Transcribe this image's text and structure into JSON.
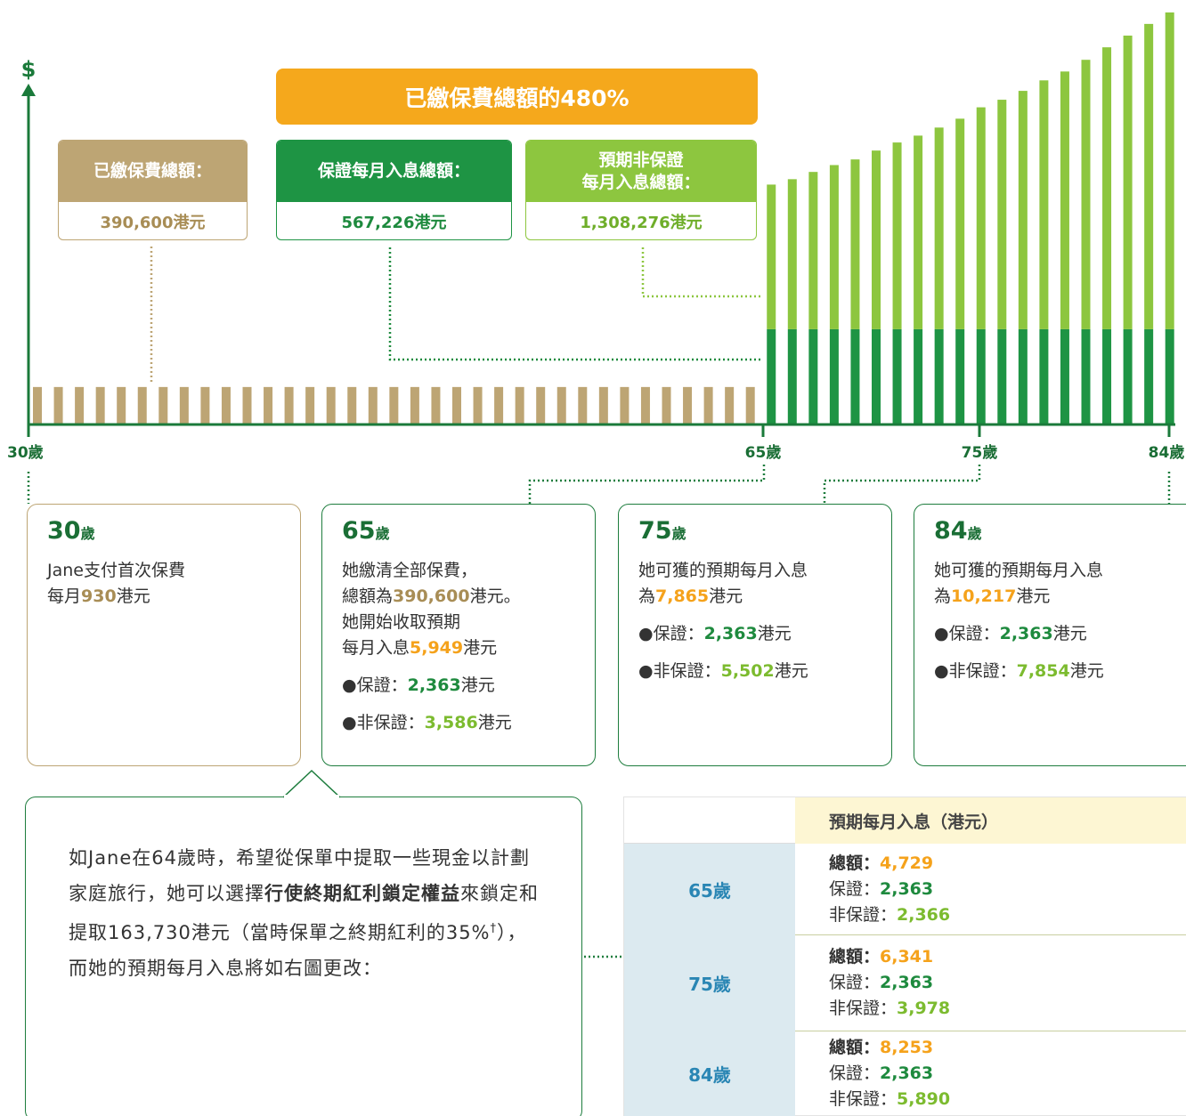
{
  "chart_data": {
    "type": "bar",
    "y_label": "$",
    "age_labels": [
      "30歲",
      "65歲",
      "75歲",
      "84歲"
    ],
    "premium": {
      "color": "#bda574",
      "values": [
        930,
        930,
        930,
        930,
        930,
        930,
        930,
        930,
        930,
        930,
        930,
        930,
        930,
        930,
        930,
        930,
        930,
        930,
        930,
        930,
        930,
        930,
        930,
        930,
        930,
        930,
        930,
        930,
        930,
        930,
        930,
        930,
        930,
        930,
        930
      ]
    },
    "guaranteed": {
      "color": "#1e9444",
      "values": [
        2363,
        2363,
        2363,
        2363,
        2363,
        2363,
        2363,
        2363,
        2363,
        2363,
        2363,
        2363,
        2363,
        2363,
        2363,
        2363,
        2363,
        2363,
        2363,
        2363
      ]
    },
    "non_guaranteed": {
      "color": "#8dc63f",
      "values": [
        3586,
        3720,
        3900,
        4070,
        4210,
        4430,
        4630,
        4800,
        5000,
        5220,
        5502,
        5690,
        5910,
        6170,
        6390,
        6680,
        6990,
        7280,
        7570,
        7854
      ]
    }
  },
  "banner": "已繳保費總額的480%",
  "totals": [
    {
      "label": [
        "已繳保費總額："
      ],
      "value": "390,600港元",
      "style": "tan"
    },
    {
      "label": [
        "保證每月入息總額："
      ],
      "value": "567,226港元",
      "style": "green"
    },
    {
      "label": [
        "預期非保證",
        "每月入息總額："
      ],
      "value": "1,308,276港元",
      "style": "lgreen"
    }
  ],
  "cards": [
    {
      "age": "30",
      "unit": "歲",
      "style": "tan",
      "lines": [
        [
          {
            "text": "Jane支付首次保費"
          }
        ],
        [
          {
            "text": "每月"
          },
          {
            "text": "930",
            "style": "tan"
          },
          {
            "text": "港元"
          }
        ]
      ]
    },
    {
      "age": "65",
      "unit": "歲",
      "style": "green",
      "lines": [
        [
          {
            "text": "她繳清全部保費，"
          }
        ],
        [
          {
            "text": "總額為"
          },
          {
            "text": "390,600",
            "style": "tan"
          },
          {
            "text": "港元。"
          }
        ],
        [
          {
            "text": "她開始收取預期"
          }
        ],
        [
          {
            "text": "每月入息"
          },
          {
            "text": "5,949",
            "style": "orange"
          },
          {
            "text": "港元"
          }
        ],
        [
          {
            "text": "●保證："
          },
          {
            "text": "2,363",
            "style": "green"
          },
          {
            "text": "港元"
          }
        ],
        [
          {
            "text": "●非保證："
          },
          {
            "text": "3,586",
            "style": "lgreen"
          },
          {
            "text": "港元"
          }
        ]
      ]
    },
    {
      "age": "75",
      "unit": "歲",
      "style": "green",
      "lines": [
        [
          {
            "text": "她可獲的預期每月入息"
          }
        ],
        [
          {
            "text": "為"
          },
          {
            "text": "7,865",
            "style": "orange"
          },
          {
            "text": "港元"
          }
        ],
        [
          {
            "text": "●保證："
          },
          {
            "text": "2,363",
            "style": "green"
          },
          {
            "text": "港元"
          }
        ],
        [
          {
            "text": "●非保證："
          },
          {
            "text": "5,502",
            "style": "lgreen"
          },
          {
            "text": "港元"
          }
        ]
      ]
    },
    {
      "age": "84",
      "unit": "歲",
      "style": "green",
      "lines": [
        [
          {
            "text": "她可獲的預期每月入息"
          }
        ],
        [
          {
            "text": "為"
          },
          {
            "text": "10,217",
            "style": "orange"
          },
          {
            "text": "港元"
          }
        ],
        [
          {
            "text": "●保證："
          },
          {
            "text": "2,363",
            "style": "green"
          },
          {
            "text": "港元"
          }
        ],
        [
          {
            "text": "●非保證："
          },
          {
            "text": "7,854",
            "style": "lgreen"
          },
          {
            "text": "港元"
          }
        ]
      ]
    }
  ],
  "note": [
    {
      "text": "如Jane在64歲時，希望從保單中提取一些現金以計劃家庭旅行，她可以選擇"
    },
    {
      "text": "行使終期紅利鎖定權益",
      "style": "bold"
    },
    {
      "text": "來鎖定和提取163,730港元（當時保單之終期紅利的35%"
    },
    {
      "text": "†",
      "style": "sup"
    },
    {
      "text": "），而她的預期每月入息將如右圖更改："
    }
  ],
  "table": {
    "header": "預期每月入息（港元）",
    "rows": [
      {
        "age": "65歲",
        "total_label": "總額：",
        "total": "4,729",
        "g_label": "保證：",
        "g": "2,363",
        "ng_label": "非保證：",
        "ng": "2,366"
      },
      {
        "age": "75歲",
        "total_label": "總額：",
        "total": "6,341",
        "g_label": "保證：",
        "g": "2,363",
        "ng_label": "非保證：",
        "ng": "3,978"
      },
      {
        "age": "84歲",
        "total_label": "總額：",
        "total": "8,253",
        "g_label": "保證：",
        "g": "2,363",
        "ng_label": "非保證：",
        "ng": "5,890"
      }
    ]
  }
}
